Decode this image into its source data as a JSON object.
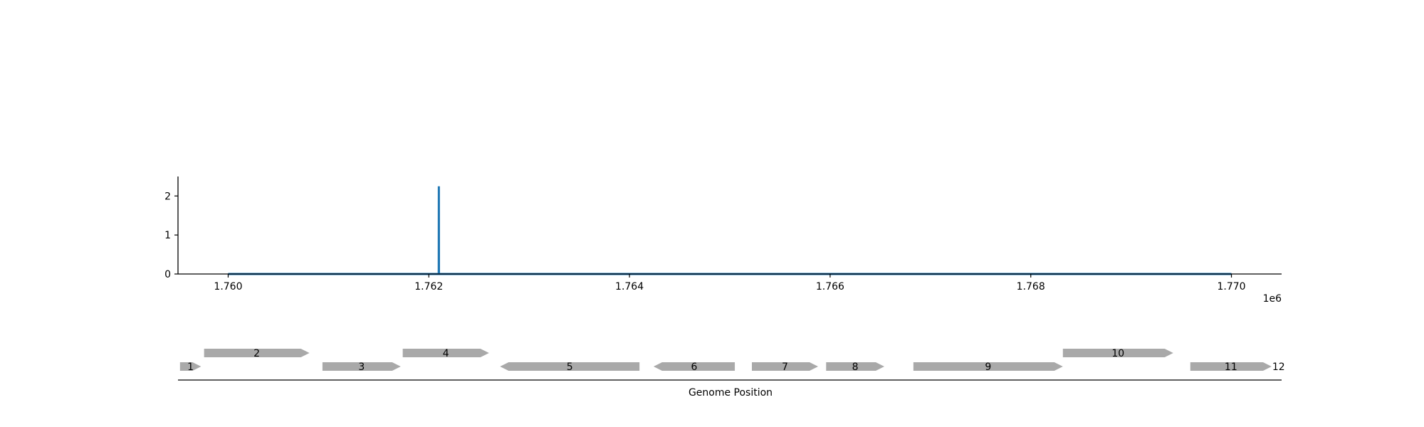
{
  "chart_data": [
    {
      "type": "line",
      "x": [
        1760000,
        1762099,
        1762100,
        1762101,
        1770000
      ],
      "y": [
        0,
        0,
        2.25,
        0,
        0
      ],
      "xlim": [
        1759500,
        1770500
      ],
      "ylim": [
        0,
        2.5
      ],
      "x_ticks": [
        1760000,
        1762000,
        1764000,
        1766000,
        1768000,
        1770000
      ],
      "x_tick_labels": [
        "1.760",
        "1.762",
        "1.764",
        "1.766",
        "1.768",
        "1.770"
      ],
      "x_offset_label": "1e6",
      "y_ticks": [
        0,
        1,
        2
      ],
      "y_tick_labels": [
        "0",
        "1",
        "2"
      ],
      "grid": false,
      "color": "#1f77b4"
    },
    {
      "type": "gene-track",
      "xlim": [
        1759500,
        1770500
      ],
      "xlabel": "Genome Position",
      "feature_color": "#a9a9a9",
      "genes": [
        {
          "label": "1",
          "start": 1759520,
          "end": 1759730,
          "strand": 1,
          "row": 0
        },
        {
          "label": "2",
          "start": 1759760,
          "end": 1760810,
          "strand": 1,
          "row": 1
        },
        {
          "label": "3",
          "start": 1760940,
          "end": 1761720,
          "strand": 1,
          "row": 0
        },
        {
          "label": "4",
          "start": 1761740,
          "end": 1762600,
          "strand": 1,
          "row": 1
        },
        {
          "label": "5",
          "start": 1762710,
          "end": 1764100,
          "strand": -1,
          "row": 0
        },
        {
          "label": "6",
          "start": 1764240,
          "end": 1765050,
          "strand": -1,
          "row": 0
        },
        {
          "label": "7",
          "start": 1765220,
          "end": 1765880,
          "strand": 1,
          "row": 0
        },
        {
          "label": "8",
          "start": 1765960,
          "end": 1766540,
          "strand": 1,
          "row": 0
        },
        {
          "label": "9",
          "start": 1766830,
          "end": 1768320,
          "strand": 1,
          "row": 0
        },
        {
          "label": "10",
          "start": 1768320,
          "end": 1769420,
          "strand": 1,
          "row": 1
        },
        {
          "label": "11",
          "start": 1769590,
          "end": 1770400,
          "strand": 1,
          "row": 0
        },
        {
          "label": "12",
          "start": 1770440,
          "end": 1770500,
          "strand": 1,
          "row": 0
        }
      ]
    }
  ]
}
